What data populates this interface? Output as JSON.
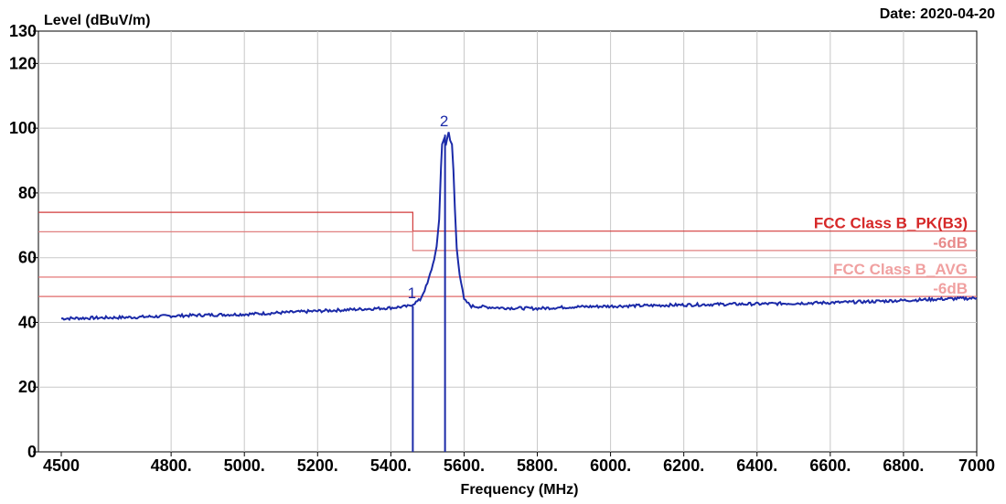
{
  "chart_data": {
    "type": "line",
    "ylabel": "Level (dBuV/m)",
    "xlabel": "Frequency (MHz)",
    "date": "Date: 2020-04-20",
    "xlim": [
      4500,
      7000
    ],
    "ylim": [
      0,
      130
    ],
    "x_ticks": [
      {
        "value": 4500,
        "label": "4500"
      },
      {
        "value": 4800,
        "label": "4800."
      },
      {
        "value": 5000,
        "label": "5000."
      },
      {
        "value": 5200,
        "label": "5200."
      },
      {
        "value": 5400,
        "label": "5400."
      },
      {
        "value": 5600,
        "label": "5600."
      },
      {
        "value": 5800,
        "label": "5800."
      },
      {
        "value": 6000,
        "label": "6000."
      },
      {
        "value": 6200,
        "label": "6200."
      },
      {
        "value": 6400,
        "label": "6400."
      },
      {
        "value": 6600,
        "label": "6600."
      },
      {
        "value": 6800,
        "label": "6800."
      },
      {
        "value": 7000,
        "label": "7000"
      }
    ],
    "y_ticks": [
      {
        "value": 0,
        "label": "0"
      },
      {
        "value": 20,
        "label": "20"
      },
      {
        "value": 40,
        "label": "40"
      },
      {
        "value": 60,
        "label": "60"
      },
      {
        "value": 80,
        "label": "80"
      },
      {
        "value": 100,
        "label": "100"
      },
      {
        "value": 120,
        "label": "120"
      },
      {
        "value": 130,
        "label": "130"
      }
    ],
    "grid": true,
    "series": [
      {
        "color": "#1b2aa8",
        "points": [
          [
            4500,
            41.2
          ],
          [
            4600,
            41.4
          ],
          [
            4700,
            41.6
          ],
          [
            4800,
            42.0
          ],
          [
            4900,
            42.3
          ],
          [
            5000,
            42.5
          ],
          [
            5100,
            43.0
          ],
          [
            5200,
            43.5
          ],
          [
            5300,
            44.0
          ],
          [
            5400,
            44.5
          ],
          [
            5450,
            45.0
          ],
          [
            5480,
            47.0
          ],
          [
            5500,
            52.0
          ],
          [
            5515,
            58.0
          ],
          [
            5525,
            63.0
          ],
          [
            5532,
            72.0
          ],
          [
            5537,
            88.0
          ],
          [
            5540,
            95.0
          ],
          [
            5545,
            96.5
          ],
          [
            5550,
            95.0
          ],
          [
            5555,
            97.5
          ],
          [
            5558,
            98.5
          ],
          [
            5562,
            96.0
          ],
          [
            5567,
            95.0
          ],
          [
            5571,
            87.0
          ],
          [
            5575,
            75.0
          ],
          [
            5580,
            63.0
          ],
          [
            5588,
            55.0
          ],
          [
            5600,
            47.0
          ],
          [
            5620,
            45.0
          ],
          [
            5700,
            44.5
          ],
          [
            5800,
            44.3
          ],
          [
            5900,
            44.8
          ],
          [
            6000,
            45.0
          ],
          [
            6100,
            45.2
          ],
          [
            6200,
            45.4
          ],
          [
            6300,
            45.6
          ],
          [
            6400,
            45.7
          ],
          [
            6500,
            45.9
          ],
          [
            6600,
            46.1
          ],
          [
            6700,
            46.4
          ],
          [
            6800,
            46.8
          ],
          [
            6900,
            47.2
          ],
          [
            7000,
            47.5
          ]
        ]
      }
    ],
    "limits": [
      {
        "name": "FCC Class B_PK(B3)",
        "color": "#d23a3a",
        "label_color": "#d62828",
        "segments": [
          [
            4500,
            5460,
            74
          ],
          [
            5460,
            7000,
            68.2
          ]
        ]
      },
      {
        "name": "-6dB",
        "color": "#e08080",
        "label_color": "#e88a8a",
        "segments": [
          [
            4500,
            5460,
            68
          ],
          [
            5460,
            7000,
            62.2
          ]
        ]
      },
      {
        "name": "FCC Class B_AVG",
        "color": "#e06a6a",
        "label_color": "#f0a0a0",
        "segments": [
          [
            4500,
            7000,
            54
          ]
        ]
      },
      {
        "name": "-6dB",
        "color": "#e06a6a",
        "label_color": "#f0a0a0",
        "segments": [
          [
            4500,
            7000,
            48
          ]
        ]
      }
    ],
    "markers": [
      {
        "label": "1",
        "x": 5460,
        "y": 45.0
      },
      {
        "label": "2",
        "x": 5548,
        "y": 98.0
      }
    ]
  }
}
